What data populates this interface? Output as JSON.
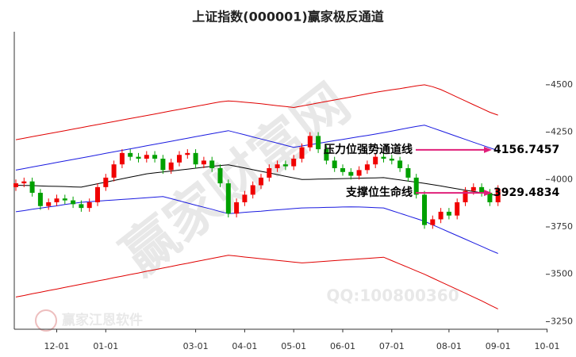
{
  "chart_data": {
    "type": "candlestick",
    "title": "上证指数(000001)赢家极反通道",
    "categories": [
      null,
      null,
      null,
      null,
      null,
      "12-01",
      null,
      null,
      null,
      null,
      null,
      "01-01",
      null,
      null,
      null,
      null,
      null,
      null,
      null,
      null,
      null,
      null,
      "03-01",
      null,
      null,
      null,
      null,
      null,
      "04-01",
      null,
      null,
      null,
      null,
      null,
      "05-01",
      null,
      null,
      null,
      null,
      null,
      "06-01",
      null,
      null,
      null,
      null,
      null,
      "07-01",
      null,
      null,
      null,
      null,
      null,
      null,
      "08-01",
      null,
      null,
      null,
      null,
      null,
      "09-01",
      null,
      null,
      null,
      null,
      null,
      "10-01"
    ],
    "open": [
      3960,
      3980,
      3990,
      3930,
      3860,
      3880,
      3900,
      3890,
      3870,
      3850,
      3880,
      3960,
      4010,
      4080,
      4140,
      4120,
      4110,
      4130,
      4110,
      4050,
      4090,
      4130,
      4140,
      4080,
      4100,
      4060,
      3980,
      3820,
      3880,
      3920,
      3970,
      4010,
      4060,
      4080,
      4070,
      4110,
      4170,
      4230,
      4160,
      4100,
      4060,
      4040,
      4020,
      4050,
      4080,
      4120,
      4110,
      4100,
      4060,
      4010,
      3920,
      3760,
      3790,
      3830,
      3810,
      3880,
      3940,
      3960,
      3930,
      3880,
      null,
      null,
      null,
      null,
      null,
      null
    ],
    "high": [
      4000,
      4010,
      4010,
      3950,
      3900,
      3920,
      3920,
      3910,
      3890,
      3900,
      3980,
      4030,
      4100,
      4160,
      4160,
      4140,
      4150,
      4150,
      4130,
      4110,
      4150,
      4160,
      4160,
      4120,
      4120,
      4080,
      4000,
      3900,
      3940,
      3990,
      4030,
      4080,
      4100,
      4100,
      4130,
      4190,
      4250,
      4250,
      4180,
      4120,
      4080,
      4060,
      4070,
      4100,
      4140,
      4140,
      4130,
      4120,
      4080,
      4030,
      3940,
      3810,
      3850,
      3850,
      3900,
      3960,
      3980,
      3980,
      3950,
      3970,
      null,
      null,
      null,
      null,
      null,
      null
    ],
    "low": [
      3940,
      3960,
      3910,
      3840,
      3840,
      3860,
      3870,
      3850,
      3830,
      3830,
      3860,
      3940,
      3990,
      4060,
      4100,
      4090,
      4090,
      4090,
      4030,
      4030,
      4070,
      4110,
      4060,
      4060,
      4040,
      3960,
      3800,
      3800,
      3860,
      3900,
      3950,
      3990,
      4040,
      4050,
      4050,
      4090,
      4150,
      4140,
      4080,
      4040,
      4020,
      4000,
      4000,
      4030,
      4060,
      4090,
      4080,
      4040,
      3990,
      3900,
      3740,
      3740,
      3770,
      3790,
      3790,
      3860,
      3920,
      3910,
      3860,
      3860,
      null,
      null,
      null,
      null,
      null,
      null
    ],
    "close": [
      3980,
      3990,
      3930,
      3860,
      3880,
      3900,
      3890,
      3870,
      3850,
      3880,
      3960,
      4010,
      4080,
      4140,
      4120,
      4110,
      4130,
      4110,
      4050,
      4090,
      4130,
      4140,
      4080,
      4100,
      4060,
      3980,
      3820,
      3880,
      3920,
      3970,
      4010,
      4060,
      4080,
      4070,
      4110,
      4170,
      4230,
      4160,
      4100,
      4060,
      4040,
      4020,
      4050,
      4080,
      4120,
      4110,
      4100,
      4060,
      4010,
      3920,
      3760,
      3790,
      3830,
      3810,
      3880,
      3940,
      3960,
      3930,
      3880,
      3950,
      null,
      null,
      null,
      null,
      null,
      null
    ],
    "up_color": "#f00000",
    "down_color": "#00a000",
    "series": [
      {
        "type": "line",
        "color": "#e00000",
        "values": [
          4210,
          4218,
          4226,
          4234,
          4242,
          4250,
          4258,
          4266,
          4274,
          4282,
          4290,
          4298,
          4306,
          4314,
          4322,
          4330,
          4338,
          4346,
          4354,
          4362,
          4370,
          4378,
          4386,
          4394,
          4402,
          4410,
          4415,
          4412,
          4408,
          4404,
          4400,
          4395,
          4390,
          4385,
          4380,
          4388,
          4396,
          4404,
          4412,
          4420,
          4428,
          4436,
          4444,
          4452,
          4460,
          4467,
          4474,
          4480,
          4487,
          4494,
          4500,
          4490,
          4475,
          4455,
          4435,
          4415,
          4395,
          4375,
          4355,
          4340,
          null,
          null,
          null,
          null,
          null,
          null
        ]
      },
      {
        "type": "line",
        "color": "#1a1ae0",
        "values": [
          4050,
          4058,
          4066,
          4074,
          4082,
          4090,
          4098,
          4106,
          4114,
          4122,
          4130,
          4138,
          4146,
          4154,
          4162,
          4170,
          4178,
          4186,
          4194,
          4202,
          4210,
          4218,
          4226,
          4234,
          4242,
          4250,
          4258,
          4247,
          4236,
          4225,
          4214,
          4203,
          4192,
          4181,
          4170,
          4177,
          4184,
          4191,
          4198,
          4205,
          4212,
          4219,
          4226,
          4233,
          4240,
          4248,
          4256,
          4264,
          4272,
          4280,
          4287,
          4272,
          4257,
          4242,
          4227,
          4212,
          4197,
          4182,
          4167,
          4153,
          null,
          null,
          null,
          null,
          null,
          null
        ]
      },
      {
        "type": "line",
        "color": "#000000",
        "values": [
          3970,
          3969,
          3968,
          3966,
          3965,
          3964,
          3963,
          3961,
          3960,
          3969,
          3978,
          3986,
          3995,
          4004,
          4013,
          4021,
          4030,
          4035,
          4040,
          4045,
          4050,
          4055,
          4060,
          4065,
          4070,
          4074,
          4078,
          4069,
          4061,
          4052,
          4043,
          4035,
          4026,
          4017,
          4009,
          4000,
          4001,
          4002,
          4003,
          4004,
          4005,
          4006,
          4007,
          4008,
          4009,
          4010,
          4004,
          3998,
          3992,
          3986,
          3980,
          3973,
          3966,
          3958,
          3951,
          3944,
          3937,
          3930,
          3922,
          3915,
          null,
          null,
          null,
          null,
          null,
          null
        ]
      },
      {
        "type": "line",
        "color": "#1a1ae0",
        "values": [
          3830,
          3836,
          3843,
          3849,
          3855,
          3861,
          3868,
          3874,
          3880,
          3883,
          3886,
          3889,
          3892,
          3895,
          3898,
          3901,
          3904,
          3907,
          3910,
          3899,
          3888,
          3876,
          3865,
          3854,
          3843,
          3831,
          3820,
          3823,
          3827,
          3830,
          3833,
          3837,
          3840,
          3843,
          3847,
          3850,
          3851,
          3852,
          3853,
          3854,
          3855,
          3856,
          3855,
          3854,
          3852,
          3850,
          3836,
          3822,
          3808,
          3794,
          3780,
          3761,
          3742,
          3723,
          3704,
          3685,
          3666,
          3647,
          3628,
          3610,
          null,
          null,
          null,
          null,
          null,
          null
        ]
      },
      {
        "type": "line",
        "color": "#e00000",
        "values": [
          3380,
          3388,
          3397,
          3405,
          3414,
          3422,
          3431,
          3439,
          3448,
          3456,
          3465,
          3473,
          3482,
          3490,
          3499,
          3507,
          3516,
          3524,
          3533,
          3541,
          3550,
          3558,
          3567,
          3575,
          3584,
          3592,
          3600,
          3596,
          3591,
          3587,
          3582,
          3578,
          3573,
          3569,
          3564,
          3560,
          3563,
          3566,
          3569,
          3572,
          3575,
          3578,
          3581,
          3584,
          3587,
          3590,
          3572,
          3554,
          3536,
          3518,
          3500,
          3480,
          3460,
          3440,
          3420,
          3400,
          3380,
          3360,
          3338,
          3317,
          null,
          null,
          null,
          null,
          null,
          null
        ]
      }
    ],
    "ylim": [
      3210,
      4780
    ],
    "yticks": [
      3250,
      3500,
      3750,
      4000,
      4250,
      4500
    ],
    "annotations": [
      {
        "text": "压力位强势通道线",
        "value": 4156.7457,
        "color": "#e0207a"
      },
      {
        "text": "支撑位生命线",
        "value": 3929.4834,
        "color": "#e0207a"
      }
    ],
    "watermarks": [
      "赢家财富网",
      "QQ:100800360",
      "赢家江恩软件"
    ]
  }
}
